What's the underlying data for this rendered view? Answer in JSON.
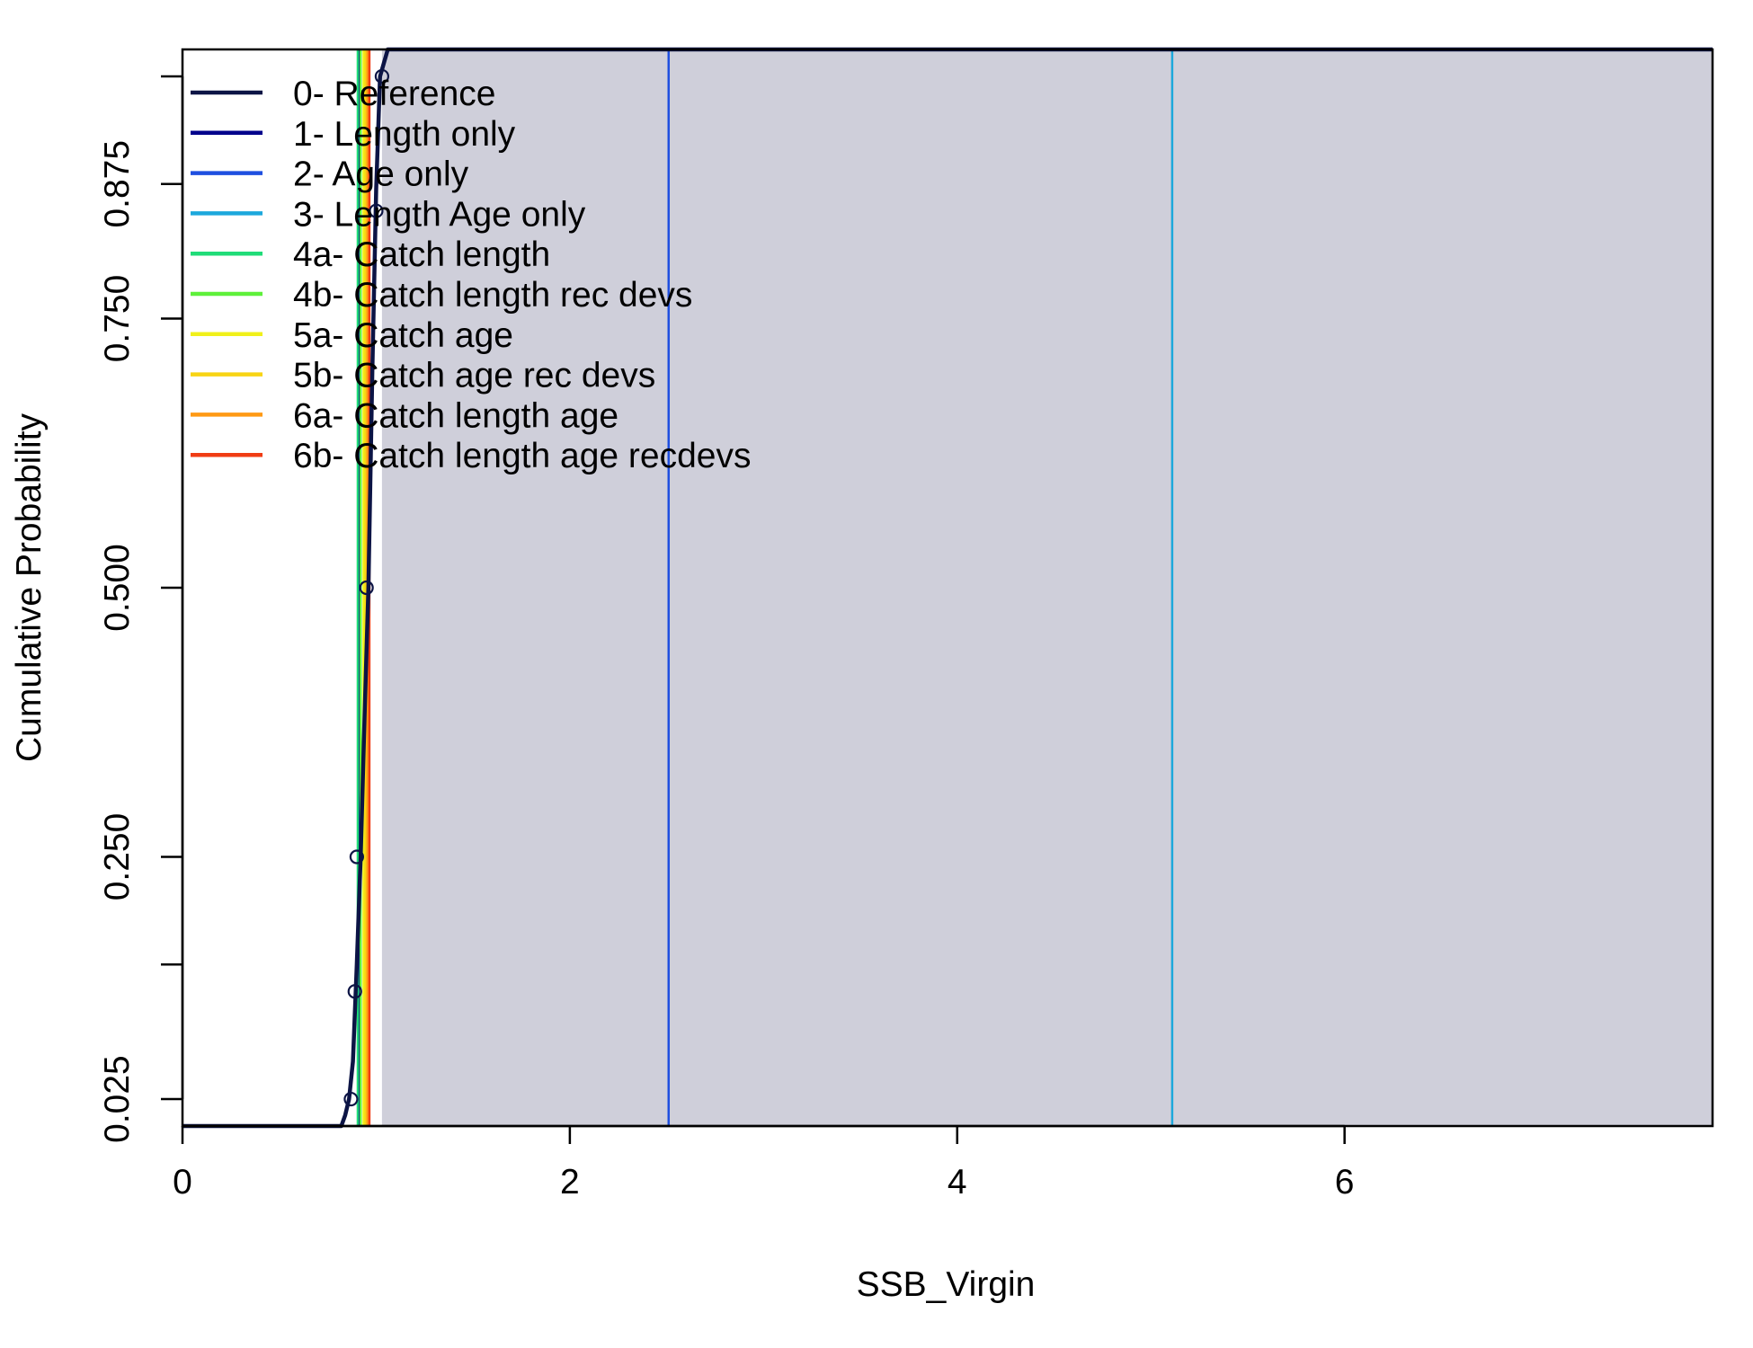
{
  "chart_data": {
    "type": "line",
    "xlabel": "SSB_Virgin",
    "ylabel": "Cumulative Probability",
    "xlim": [
      0,
      7.9
    ],
    "ylim": [
      0,
      1
    ],
    "x_ticks": [
      0,
      2,
      4,
      6
    ],
    "x_tick_labels": [
      "0",
      "2",
      "4",
      "6"
    ],
    "y_ticks": [
      0.025,
      0.15,
      0.25,
      0.5,
      0.75,
      0.875,
      0.975
    ],
    "y_tick_labels": [
      "0.025",
      "",
      "0.250",
      "0.500",
      "0.750",
      "0.875",
      ""
    ],
    "grid": false,
    "legend_position": "top-left",
    "shaded_region": {
      "x_from": 1.03,
      "x_to": 7.9,
      "color": "#cfcfda"
    },
    "series": [
      {
        "name": "0- Reference",
        "color": "#0c1445",
        "kind": "cdf",
        "x": [
          0,
          0.82,
          0.84,
          0.86,
          0.88,
          0.9,
          0.92,
          0.94,
          0.96,
          0.98,
          1.0,
          1.02,
          1.06,
          7.9
        ],
        "y": [
          0,
          0,
          0.01,
          0.025,
          0.06,
          0.15,
          0.25,
          0.38,
          0.5,
          0.7,
          0.87,
          0.975,
          1,
          1
        ],
        "markers_x": [
          0.87,
          0.89,
          0.9,
          0.95,
          1.0,
          1.03
        ],
        "markers_y": [
          0.025,
          0.125,
          0.25,
          0.5,
          0.85,
          0.975
        ]
      },
      {
        "name": "1- Length only",
        "color": "#00008b",
        "kind": "vline",
        "x": 0.91
      },
      {
        "name": "2- Age only",
        "color": "#1f4fe0",
        "kind": "vline",
        "x": 2.51
      },
      {
        "name": "3- Length Age only",
        "color": "#1ca8dc",
        "kind": "vline",
        "x": 5.11
      },
      {
        "name": "4a- Catch length",
        "color": "#1fdc78",
        "kind": "vline",
        "x": 0.905
      },
      {
        "name": "4b- Catch length rec devs",
        "color": "#5ef03a",
        "kind": "vline",
        "x": 0.92
      },
      {
        "name": "5a- Catch age",
        "color": "#f0f01a",
        "kind": "vline",
        "x": 0.935
      },
      {
        "name": "5b- Catch age rec devs",
        "color": "#f8d414",
        "kind": "vline",
        "x": 0.945
      },
      {
        "name": "6a- Catch length age",
        "color": "#ff9a14",
        "kind": "vline",
        "x": 0.955
      },
      {
        "name": "6b- Catch length age recdevs",
        "color": "#f03c14",
        "kind": "vline",
        "x": 0.965
      }
    ]
  }
}
